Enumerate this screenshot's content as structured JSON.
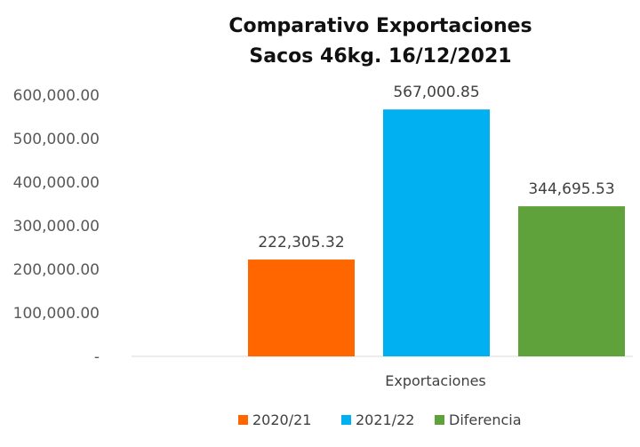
{
  "chart_data": {
    "type": "bar",
    "title": "Comparativo  Exportaciones",
    "subtitle": "Sacos 46kg. 16/12/2021",
    "categories": [
      "Exportaciones"
    ],
    "series": [
      {
        "name": "2020/21",
        "values": [
          222305.32
        ],
        "label": "222,305.32",
        "color": "#FF6600"
      },
      {
        "name": "2021/22",
        "values": [
          567000.85
        ],
        "label": "567,000.85",
        "color": "#00B0F0"
      },
      {
        "name": "Diferencia",
        "values": [
          344695.53
        ],
        "label": "344,695.53",
        "color": "#5FA13B"
      }
    ],
    "y_ticks": [
      {
        "value": 0,
        "label": "-"
      },
      {
        "value": 100000,
        "label": "100,000.00"
      },
      {
        "value": 200000,
        "label": "200,000.00"
      },
      {
        "value": 300000,
        "label": "300,000.00"
      },
      {
        "value": 400000,
        "label": "400,000.00"
      },
      {
        "value": 500000,
        "label": "500,000.00"
      },
      {
        "value": 600000,
        "label": "600,000.00"
      }
    ],
    "ylim": [
      0,
      600000
    ],
    "xlabel": "",
    "ylabel": "",
    "grid": false,
    "legend": "bottom"
  }
}
